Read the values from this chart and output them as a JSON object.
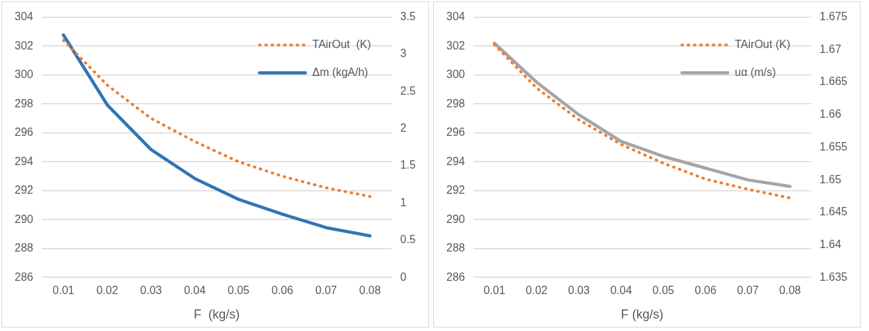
{
  "chart_data": [
    {
      "type": "line",
      "xlabel": "F  (kg/s)",
      "categories": [
        "0.01",
        "0.02",
        "0.03",
        "0.04",
        "0.05",
        "0.06",
        "0.07",
        "0.08"
      ],
      "ylim": [
        286,
        304
      ],
      "yticks": [
        286,
        288,
        290,
        292,
        294,
        296,
        298,
        300,
        302,
        304
      ],
      "y2lim": [
        0,
        3.5
      ],
      "y2ticks": [
        0,
        0.5,
        1,
        1.5,
        2,
        2.5,
        3,
        3.5
      ],
      "grid": "y",
      "legend": "top right",
      "marker": "none",
      "series": [
        {
          "name": "TAirOut  (K)",
          "color": "#ed7d31",
          "line_style": "dotted",
          "values": [
            302.4,
            299.3,
            297.0,
            295.4,
            294.0,
            293.0,
            292.2,
            291.6
          ]
        },
        {
          "name": "Δm (kgA/h)",
          "color": "#2e75b6",
          "line_style": "solid",
          "axis": "y2",
          "values": [
            3.26,
            2.32,
            1.72,
            1.33,
            1.05,
            0.85,
            0.67,
            0.56
          ]
        }
      ]
    },
    {
      "type": "line",
      "xlabel": "F (kg/s)",
      "categories": [
        "0.01",
        "0.02",
        "0.03",
        "0.04",
        "0.05",
        "0.06",
        "0.07",
        "0.08"
      ],
      "ylim": [
        286,
        304
      ],
      "yticks": [
        286,
        288,
        290,
        292,
        294,
        296,
        298,
        300,
        302,
        304
      ],
      "y2lim": [
        1.635,
        1.675
      ],
      "y2ticks": [
        1.635,
        1.64,
        1.645,
        1.65,
        1.655,
        1.66,
        1.665,
        1.67,
        1.675
      ],
      "grid": "y",
      "legend": "top right",
      "marker": "none",
      "series": [
        {
          "name": "TAirOut (K)",
          "color": "#ed7d31",
          "line_style": "dotted",
          "values": [
            302.1,
            299.1,
            296.9,
            295.2,
            293.9,
            292.8,
            292.1,
            291.5
          ]
        },
        {
          "name": "uα (m/s)",
          "color": "#a5a5a5",
          "line_style": "solid",
          "axis": "y2",
          "values": [
            1.671,
            1.665,
            1.66,
            1.6559,
            1.6536,
            1.6518,
            1.65,
            1.649
          ]
        }
      ]
    }
  ]
}
